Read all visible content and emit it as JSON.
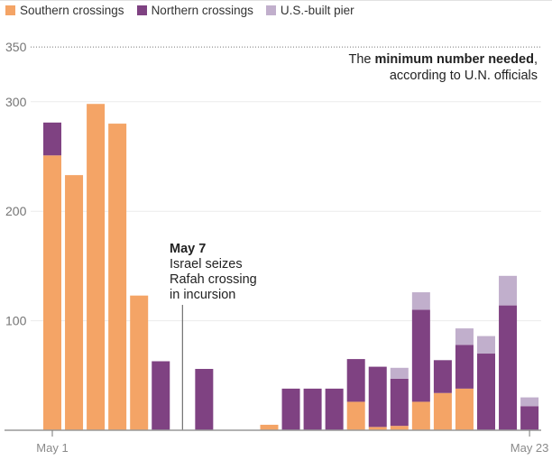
{
  "legend": [
    {
      "label": "Southern crossings",
      "color": "#f4a466",
      "key": "southern"
    },
    {
      "label": "Northern crossings",
      "color": "#7f4282",
      "key": "northern"
    },
    {
      "label": "U.S.-built pier",
      "color": "#c1afcc",
      "key": "pier"
    }
  ],
  "threshold_note": {
    "prefix": "The ",
    "bold": "minimum number needed",
    "suffix": ",",
    "line2": "according to U.N. officials"
  },
  "annotation": {
    "date": "May 7",
    "line1": "Israel seizes",
    "line2": "Rafah crossing",
    "line3": "in incursion"
  },
  "chart_data": {
    "type": "bar",
    "stacked": true,
    "title": "",
    "xlabel": "",
    "ylabel": "",
    "ylim": [
      0,
      350
    ],
    "yticks": [
      100,
      200,
      300,
      350
    ],
    "grid": true,
    "legend_position": "top-left",
    "threshold": {
      "value": 350,
      "label": "The minimum number needed, according to U.N. officials",
      "style": "dotted"
    },
    "annotation": {
      "x": "May 7",
      "text": "May 7 Israel seizes Rafah crossing in incursion"
    },
    "x_tick_labels": [
      "May 1",
      "May 23"
    ],
    "categories": [
      "May 1",
      "May 2",
      "May 3",
      "May 4",
      "May 5",
      "May 6",
      "May 7",
      "May 8",
      "May 9",
      "May 10",
      "May 11",
      "May 12",
      "May 13",
      "May 14",
      "May 15",
      "May 16",
      "May 17",
      "May 18",
      "May 19",
      "May 20",
      "May 21",
      "May 22",
      "May 23"
    ],
    "series": [
      {
        "name": "Southern crossings",
        "key": "southern",
        "values": [
          251,
          233,
          298,
          280,
          123,
          0,
          0,
          0,
          0,
          0,
          5,
          0,
          0,
          0,
          26,
          3,
          4,
          26,
          34,
          38,
          0,
          0,
          0
        ]
      },
      {
        "name": "Northern crossings",
        "key": "northern",
        "values": [
          30,
          0,
          0,
          0,
          0,
          63,
          0,
          56,
          0,
          0,
          0,
          38,
          38,
          38,
          39,
          55,
          43,
          84,
          30,
          40,
          70,
          114,
          22
        ]
      },
      {
        "name": "U.S.-built pier",
        "key": "pier",
        "values": [
          0,
          0,
          0,
          0,
          0,
          0,
          0,
          0,
          0,
          0,
          0,
          0,
          0,
          0,
          0,
          0,
          10,
          16,
          0,
          15,
          16,
          27,
          8
        ]
      }
    ]
  }
}
